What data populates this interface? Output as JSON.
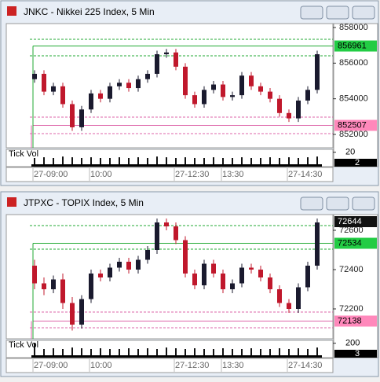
{
  "chart_data": [
    {
      "type": "candlestick",
      "title": "JNKC - Nikkei 225 Index, 5 Min",
      "x": [
        "27-09:00",
        null,
        null,
        null,
        null,
        null,
        "10:00",
        null,
        null,
        null,
        null,
        null,
        null,
        null,
        null,
        "27-12:30",
        null,
        null,
        null,
        null,
        "13:30",
        null,
        null,
        null,
        null,
        null,
        null,
        "27-14:30",
        null,
        null,
        null
      ],
      "open": [
        855100,
        855400,
        854400,
        854700,
        853700,
        852400,
        853400,
        854300,
        854000,
        854700,
        854900,
        854600,
        855100,
        855400,
        856500,
        856600,
        855800,
        854200,
        853700,
        854500,
        854800,
        854100,
        854200,
        855300,
        854700,
        854400,
        854000,
        853200,
        852900,
        853900,
        854500
      ],
      "high": [
        855600,
        855600,
        854900,
        854900,
        853900,
        853600,
        854500,
        854500,
        854900,
        855100,
        855100,
        855300,
        855600,
        856700,
        856800,
        856800,
        856000,
        854400,
        854700,
        855000,
        855000,
        854400,
        855500,
        855500,
        854900,
        854600,
        854200,
        853400,
        854100,
        854700,
        856700
      ],
      "low": [
        854900,
        854200,
        854200,
        853500,
        852200,
        852200,
        853200,
        853800,
        853800,
        854500,
        854400,
        854400,
        854900,
        855200,
        856300,
        855600,
        854000,
        853500,
        853500,
        854300,
        853900,
        853900,
        854000,
        854500,
        854200,
        853800,
        853000,
        852700,
        852700,
        853700,
        854300
      ],
      "close": [
        855400,
        854400,
        854700,
        853700,
        852400,
        853400,
        854300,
        854000,
        854700,
        854900,
        854600,
        855100,
        855400,
        856500,
        856600,
        855800,
        854200,
        853700,
        854500,
        854800,
        854100,
        854200,
        855300,
        854700,
        854400,
        854000,
        853200,
        852900,
        853900,
        854500,
        856500
      ],
      "up_color": "#1a1a2e",
      "down_color": "#c0182c",
      "ylim": [
        851250,
        858220
      ],
      "yticks": [
        852000,
        854000,
        856000,
        858000
      ],
      "levels": [
        {
          "value": 857338,
          "color": "#22aa33",
          "style": "dashed"
        },
        {
          "value": 856961,
          "color": "#22aa33",
          "style": "solid"
        },
        {
          "value": 856412,
          "color": "#22aa33",
          "style": "dashed"
        },
        {
          "value": 852971,
          "color": "#dd66aa",
          "style": "dashed"
        },
        {
          "value": 852507,
          "color": "#dd66aa",
          "style": "solid"
        },
        {
          "value": 852045,
          "color": "#dd66aa",
          "style": "dashed"
        }
      ],
      "price_tags": [
        {
          "value": 856961,
          "color": "#22cc44"
        },
        {
          "value": 852507,
          "color": "#ff88bb"
        }
      ],
      "volume_label": "Tick Vol",
      "volume": [
        12,
        13,
        12,
        14,
        13,
        12,
        13,
        12,
        12,
        13,
        12,
        13,
        12,
        14,
        13,
        12,
        13,
        12,
        12,
        13,
        12,
        12,
        13,
        12,
        12,
        13,
        12,
        13,
        12,
        13,
        14
      ],
      "volume_ylim": [
        0,
        24
      ],
      "volume_ticks": [
        20
      ],
      "volume_current": 2
    },
    {
      "type": "candlestick",
      "title": "JTPXC - TOPIX Index, 5 Min",
      "x": [
        "27-09:00",
        null,
        null,
        null,
        null,
        null,
        "10:00",
        null,
        null,
        null,
        null,
        null,
        null,
        null,
        null,
        "27-12:30",
        null,
        null,
        null,
        null,
        "13:30",
        null,
        null,
        null,
        null,
        null,
        null,
        "27-14:30",
        null,
        null,
        null
      ],
      "open": [
        72420,
        72330,
        72300,
        72350,
        72230,
        72120,
        72250,
        72380,
        72360,
        72410,
        72440,
        72400,
        72450,
        72500,
        72640,
        72620,
        72550,
        72380,
        72320,
        72430,
        72380,
        72300,
        72330,
        72410,
        72400,
        72360,
        72300,
        72230,
        72200,
        72310,
        72420
      ],
      "high": [
        72450,
        72360,
        72370,
        72380,
        72260,
        72270,
        72400,
        72400,
        72430,
        72460,
        72460,
        72470,
        72520,
        72660,
        72660,
        72640,
        72570,
        72400,
        72450,
        72450,
        72400,
        72350,
        72430,
        72430,
        72420,
        72380,
        72320,
        72250,
        72330,
        72440,
        72660
      ],
      "low": [
        72300,
        72270,
        72280,
        72200,
        72090,
        72100,
        72230,
        72340,
        72340,
        72390,
        72380,
        72380,
        72430,
        72480,
        72600,
        72530,
        72360,
        72300,
        72300,
        72360,
        72280,
        72280,
        72310,
        72380,
        72340,
        72280,
        72210,
        72180,
        72180,
        72290,
        72400
      ],
      "close": [
        72330,
        72300,
        72350,
        72230,
        72120,
        72250,
        72380,
        72360,
        72410,
        72440,
        72400,
        72450,
        72500,
        72640,
        72620,
        72550,
        72380,
        72320,
        72430,
        72380,
        72300,
        72330,
        72410,
        72400,
        72360,
        72300,
        72230,
        72200,
        72310,
        72420,
        72640
      ],
      "up_color": "#1a1a2e",
      "down_color": "#c0182c",
      "ylim": [
        72048,
        72680
      ],
      "yticks": [
        72200,
        72400,
        72600
      ],
      "levels": [
        {
          "value": 72624,
          "color": "#22aa33",
          "style": "dashed"
        },
        {
          "value": 72534,
          "color": "#22aa33",
          "style": "solid"
        },
        {
          "value": 72504,
          "color": "#22aa33",
          "style": "dashed"
        },
        {
          "value": 72184,
          "color": "#dd66aa",
          "style": "dashed"
        },
        {
          "value": 72138,
          "color": "#dd66aa",
          "style": "solid"
        },
        {
          "value": 72104,
          "color": "#dd66aa",
          "style": "dashed"
        }
      ],
      "price_tags": [
        {
          "value": 72644,
          "color": "#111111"
        },
        {
          "value": 72534,
          "color": "#22cc44"
        },
        {
          "value": 72138,
          "color": "#ff88bb"
        }
      ],
      "volume_label": "Tick Vol",
      "volume": [
        200,
        120,
        130,
        120,
        140,
        130,
        120,
        130,
        120,
        120,
        130,
        120,
        130,
        120,
        140,
        130,
        120,
        130,
        120,
        120,
        130,
        120,
        120,
        130,
        120,
        120,
        130,
        120,
        130,
        120,
        140
      ],
      "volume_ylim": [
        0,
        240
      ],
      "volume_ticks": [
        200
      ],
      "volume_current": 3
    }
  ]
}
